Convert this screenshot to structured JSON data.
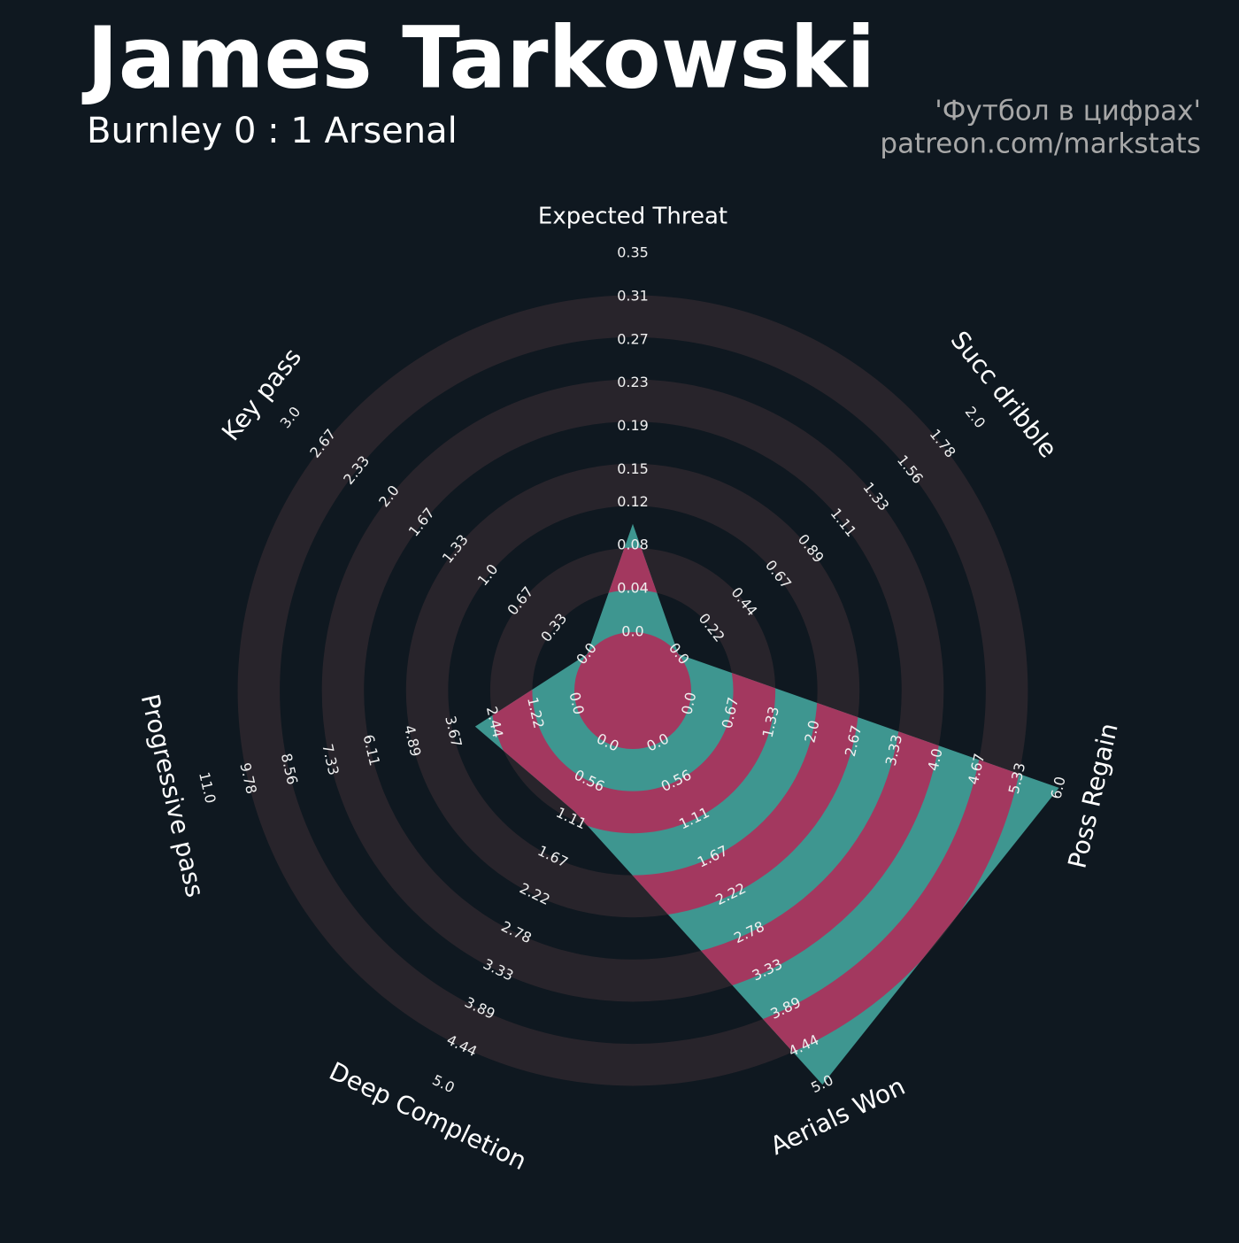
{
  "chart_data": {
    "type": "radar",
    "title": "James Tarkowski",
    "subtitle": "Burnley 0 : 1 Arsenal",
    "credits": [
      "'Футбол в цифрах'",
      "patreon.com/markstats"
    ],
    "axes": [
      {
        "name": "Expected Threat",
        "lim": [
          0,
          0.35
        ],
        "ticks": [
          {
            "value": 0,
            "label": "0.0"
          },
          0.04,
          0.08,
          0.12,
          0.15,
          0.19,
          0.23,
          0.27,
          0.31,
          0.35
        ]
      },
      {
        "name": "Succ dribble",
        "lim": [
          0,
          2
        ],
        "ticks": [
          {
            "value": 0,
            "label": "0.0"
          },
          0.22,
          0.44,
          0.67,
          0.89,
          1.11,
          1.33,
          1.56,
          1.78,
          {
            "value": 2,
            "label": "2.0"
          }
        ]
      },
      {
        "name": "Poss Regain",
        "lim": [
          0,
          6
        ],
        "ticks": [
          {
            "value": 0,
            "label": "0.0"
          },
          0.67,
          1.33,
          {
            "value": 2,
            "label": "2.0"
          },
          2.67,
          3.33,
          {
            "value": 4,
            "label": "4.0"
          },
          4.67,
          5.33,
          {
            "value": 6,
            "label": "6.0"
          }
        ]
      },
      {
        "name": "Aerials Won",
        "lim": [
          0,
          5
        ],
        "ticks": [
          {
            "value": 0,
            "label": "0.0"
          },
          0.56,
          1.11,
          1.67,
          2.22,
          2.78,
          3.33,
          3.89,
          4.44,
          {
            "value": 5,
            "label": "5.0"
          }
        ]
      },
      {
        "name": "Deep Completion",
        "lim": [
          0,
          5
        ],
        "ticks": [
          {
            "value": 0,
            "label": "0.0"
          },
          0.56,
          1.11,
          1.67,
          2.22,
          2.78,
          3.33,
          3.89,
          4.44,
          {
            "value": 5,
            "label": "5.0"
          }
        ]
      },
      {
        "name": "Progressive pass",
        "lim": [
          0,
          11
        ],
        "ticks": [
          {
            "value": 0,
            "label": "0.0"
          },
          1.22,
          2.44,
          3.67,
          4.89,
          6.11,
          7.33,
          8.56,
          9.78,
          {
            "value": 11,
            "label": "11.0"
          }
        ]
      },
      {
        "name": "Key pass",
        "lim": [
          0,
          3
        ],
        "ticks": [
          {
            "value": 0,
            "label": "0.0"
          },
          0.33,
          0.67,
          {
            "value": 1,
            "label": "1.0"
          },
          1.33,
          1.67,
          {
            "value": 2,
            "label": "2.0"
          },
          2.33,
          2.67,
          {
            "value": 3,
            "label": "3.0"
          }
        ]
      }
    ],
    "series": [
      {
        "values": [
          0.1,
          0,
          6,
          5,
          1,
          3,
          0
        ],
        "color": "#3e9690"
      }
    ],
    "ring_color": "#28242b",
    "highlight_color": "#a3385f"
  }
}
